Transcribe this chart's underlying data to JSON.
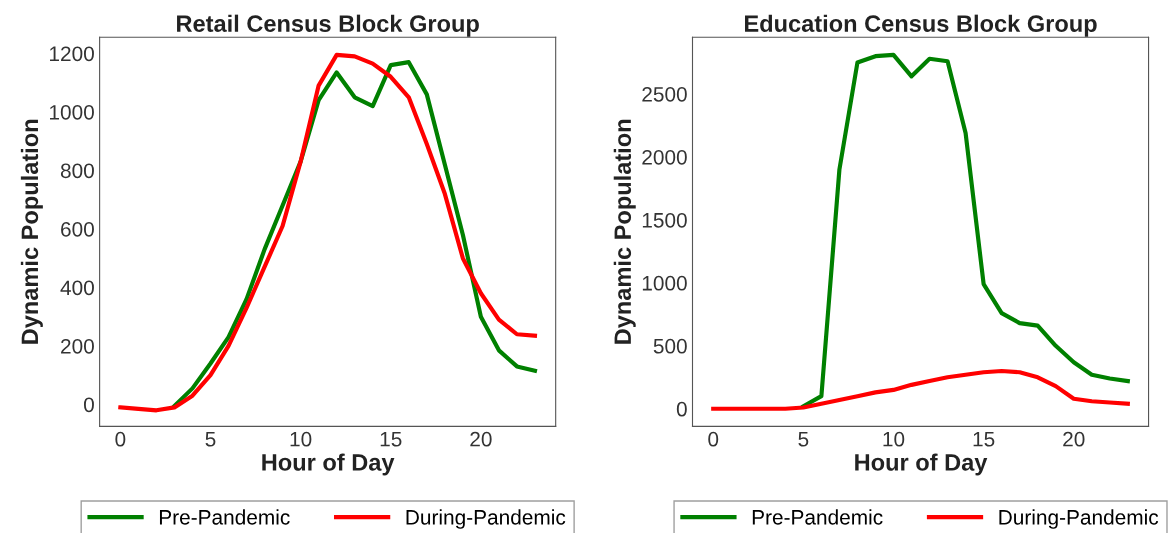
{
  "chart_data": [
    {
      "type": "line",
      "title": "Retail Census Block Group",
      "xlabel": "Hour of Day",
      "ylabel": "Dynamic Population",
      "x": [
        0,
        1,
        2,
        3,
        4,
        5,
        6,
        7,
        8,
        9,
        10,
        11,
        12,
        13,
        14,
        15,
        16,
        17,
        18,
        19,
        20,
        21,
        22,
        23
      ],
      "series": [
        {
          "name": "Pre-Pandemic",
          "color": "#008000",
          "values": [
            null,
            null,
            null,
            -5,
            55,
            140,
            230,
            360,
            530,
            680,
            830,
            1040,
            1135,
            1050,
            1020,
            1160,
            1170,
            1060,
            820,
            580,
            300,
            185,
            130,
            115
          ]
        },
        {
          "name": "During-Pandemic",
          "color": "#ff0000",
          "values": [
            -10,
            -15,
            -20,
            -10,
            30,
            100,
            200,
            330,
            470,
            610,
            830,
            1090,
            1195,
            1190,
            1165,
            1120,
            1050,
            890,
            720,
            500,
            380,
            290,
            240,
            235
          ]
        }
      ],
      "xlim": [
        -1.15,
        24.15
      ],
      "xticks": [
        0,
        5,
        10,
        15,
        20
      ],
      "ylim": [
        -75,
        1255
      ],
      "yticks": [
        0,
        200,
        400,
        600,
        800,
        1000,
        1200
      ],
      "grid": false,
      "legend": "bottom",
      "marker": "none",
      "line_style": "solid"
    },
    {
      "type": "line",
      "title": "Education Census Block Group",
      "xlabel": "Hour of Day",
      "ylabel": "Dynamic Population",
      "x": [
        0,
        1,
        2,
        3,
        4,
        5,
        6,
        7,
        8,
        9,
        10,
        11,
        12,
        13,
        14,
        15,
        16,
        17,
        18,
        19,
        20,
        21,
        22,
        23
      ],
      "series": [
        {
          "name": "Pre-Pandemic",
          "color": "#008000",
          "values": [
            null,
            null,
            null,
            null,
            null,
            20,
            100,
            1900,
            2750,
            2800,
            2810,
            2640,
            2780,
            2760,
            2190,
            990,
            760,
            680,
            660,
            500,
            370,
            270,
            240,
            220
          ]
        },
        {
          "name": "During-Pandemic",
          "color": "#ff0000",
          "values": [
            0,
            0,
            0,
            0,
            0,
            10,
            40,
            70,
            100,
            130,
            150,
            190,
            220,
            250,
            270,
            290,
            300,
            290,
            250,
            180,
            80,
            60,
            50,
            40
          ]
        }
      ],
      "xlim": [
        -1.15,
        24.15
      ],
      "xticks": [
        0,
        5,
        10,
        15,
        20
      ],
      "ylim": [
        -140,
        2950
      ],
      "yticks": [
        0,
        500,
        1000,
        1500,
        2000,
        2500
      ],
      "grid": false,
      "legend": "bottom",
      "marker": "none",
      "line_style": "solid"
    }
  ]
}
